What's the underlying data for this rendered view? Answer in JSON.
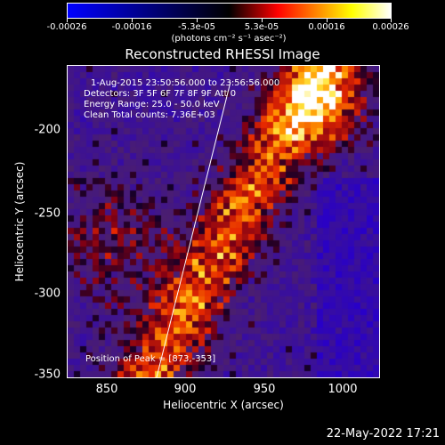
{
  "colorbar": {
    "tick_labels": [
      "-0.00026",
      "-0.00016",
      "-5.3e-05",
      "5.3e-05",
      "0.00016",
      "0.00026"
    ],
    "units_label": "(photons cm⁻² s⁻¹ asec⁻²)",
    "colors": [
      "#0000ff",
      "#000000",
      "#ff0000",
      "#ffff00",
      "#ffffff"
    ]
  },
  "image": {
    "title": "Reconstructed RHESSI Image",
    "info_lines": [
      "1-Aug-2015 23:50:56.000 to 23:56:56.000",
      "Detectors: 3F 5F 6F 7F 8F 9F Att 0",
      "Energy Range: 25.0 - 50.0 keV",
      "Clean     Total counts: 7.36E+03"
    ],
    "peak_label": "Position of Peak = [873,-353]",
    "x_axis_label": "Heliocentric X (arcsec)",
    "y_axis_label": "Heliocentric Y (arcsec)",
    "x_ticks": [
      "850",
      "900",
      "950",
      "1000"
    ],
    "y_ticks": [
      "-200",
      "-250",
      "-300",
      "-350"
    ],
    "limb_line_color": "#ffffff"
  },
  "footer": {
    "timestamp": "22-May-2022 17:21"
  }
}
